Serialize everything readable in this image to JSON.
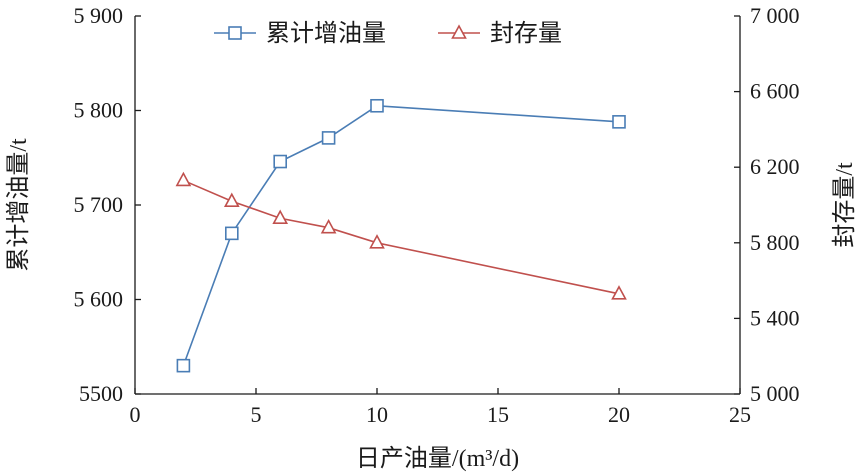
{
  "chart_data": {
    "type": "line",
    "title": "",
    "xlabel": "日产油量/(m³/d)",
    "ylabel": "累计增油量/t",
    "y2label": "封存量/t",
    "xlim": [
      0,
      25
    ],
    "ylim": [
      5500,
      5900
    ],
    "y2lim": [
      5000,
      7000
    ],
    "x_ticks": [
      0,
      5,
      10,
      15,
      20,
      25
    ],
    "x_tick_labels": [
      "0",
      "5",
      "10",
      "15",
      "20",
      "25"
    ],
    "y_ticks": [
      5500,
      5600,
      5700,
      5800,
      5900
    ],
    "y_tick_labels": [
      "5500",
      "5 600",
      "5 700",
      "5 800",
      "5 900"
    ],
    "y2_ticks": [
      5000,
      5400,
      5800,
      6200,
      6600,
      7000
    ],
    "y2_tick_labels": [
      "5 000",
      "5 400",
      "5 800",
      "6 200",
      "6 600",
      "7 000"
    ],
    "grid": false,
    "legend": "top-center",
    "x": [
      2,
      4,
      6,
      8,
      10,
      20
    ],
    "series": [
      {
        "name": "累计增油量",
        "axis": "left",
        "marker": "square",
        "color": "#4a7db5",
        "values": [
          5530,
          5670,
          5746,
          5771,
          5805,
          5788
        ]
      },
      {
        "name": "封存量",
        "axis": "right",
        "marker": "triangle",
        "color": "#c0504d",
        "values": [
          6130,
          6020,
          5930,
          5880,
          5800,
          5530
        ]
      }
    ]
  }
}
